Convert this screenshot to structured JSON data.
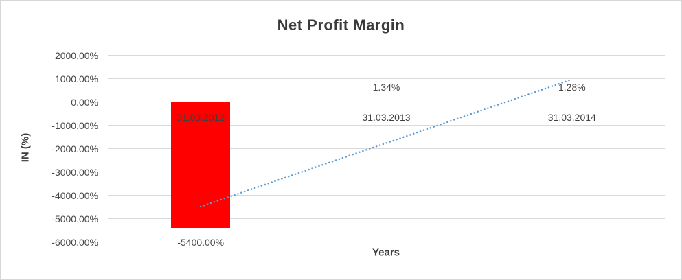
{
  "chart_data": {
    "type": "bar",
    "title": "Net Profit Margin",
    "xlabel": "Years",
    "ylabel": "IN (%)",
    "categories": [
      "31.03.2012",
      "31.03.2013",
      "31.03.2014"
    ],
    "values": [
      -5400.0,
      1.34,
      1.28
    ],
    "data_labels": [
      "-5400.00%",
      "1.34%",
      "1.28%"
    ],
    "ylim": [
      -6000,
      2000
    ],
    "ytick_values": [
      2000,
      1000,
      0,
      -1000,
      -2000,
      -3000,
      -4000,
      -5000,
      -6000
    ],
    "yticks": [
      "2000.00%",
      "1000.00%",
      "0.00%",
      "-1000.00%",
      "-2000.00%",
      "-3000.00%",
      "-4000.00%",
      "-5000.00%",
      "-6000.00%"
    ],
    "grid": true,
    "legend": "none",
    "bar_color": "#ff0000",
    "trendline": {
      "style": "round-dot",
      "color": "#5b9bd5",
      "start_value": -4500,
      "end_value": 950
    }
  },
  "colors": {
    "gridline": "#d9d9d9",
    "tick_text": "#474747",
    "title_text": "#3b3b3b",
    "border": "#d6d6d6"
  }
}
